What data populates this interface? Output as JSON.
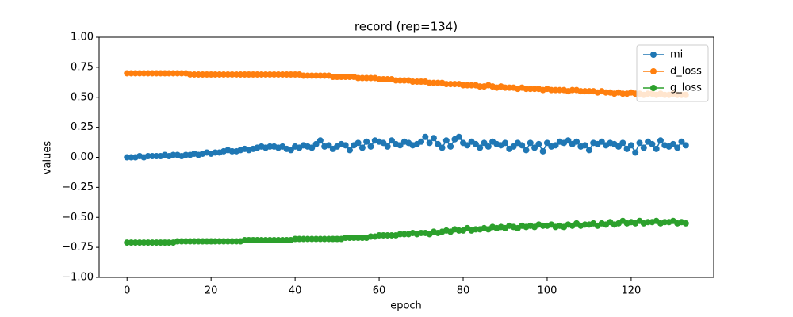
{
  "chart_data": {
    "type": "line",
    "title": "record (rep=134)",
    "xlabel": "epoch",
    "ylabel": "values",
    "x": [
      0,
      1,
      2,
      3,
      4,
      5,
      6,
      7,
      8,
      9,
      10,
      11,
      12,
      13,
      14,
      15,
      16,
      17,
      18,
      19,
      20,
      21,
      22,
      23,
      24,
      25,
      26,
      27,
      28,
      29,
      30,
      31,
      32,
      33,
      34,
      35,
      36,
      37,
      38,
      39,
      40,
      41,
      42,
      43,
      44,
      45,
      46,
      47,
      48,
      49,
      50,
      51,
      52,
      53,
      54,
      55,
      56,
      57,
      58,
      59,
      60,
      61,
      62,
      63,
      64,
      65,
      66,
      67,
      68,
      69,
      70,
      71,
      72,
      73,
      74,
      75,
      76,
      77,
      78,
      79,
      80,
      81,
      82,
      83,
      84,
      85,
      86,
      87,
      88,
      89,
      90,
      91,
      92,
      93,
      94,
      95,
      96,
      97,
      98,
      99,
      100,
      101,
      102,
      103,
      104,
      105,
      106,
      107,
      108,
      109,
      110,
      111,
      112,
      113,
      114,
      115,
      116,
      117,
      118,
      119,
      120,
      121,
      122,
      123,
      124,
      125,
      126,
      127,
      128,
      129,
      130,
      131,
      132,
      133
    ],
    "series": [
      {
        "name": "mi",
        "color": "#1f77b4",
        "values": [
          0.0,
          0.0,
          0.0,
          0.01,
          0.0,
          0.01,
          0.01,
          0.01,
          0.01,
          0.02,
          0.01,
          0.02,
          0.02,
          0.01,
          0.02,
          0.02,
          0.03,
          0.02,
          0.03,
          0.04,
          0.03,
          0.04,
          0.04,
          0.05,
          0.06,
          0.05,
          0.05,
          0.06,
          0.07,
          0.06,
          0.07,
          0.08,
          0.09,
          0.08,
          0.09,
          0.09,
          0.08,
          0.09,
          0.07,
          0.06,
          0.09,
          0.08,
          0.1,
          0.09,
          0.08,
          0.11,
          0.14,
          0.09,
          0.1,
          0.07,
          0.09,
          0.11,
          0.1,
          0.06,
          0.1,
          0.12,
          0.08,
          0.13,
          0.09,
          0.14,
          0.13,
          0.12,
          0.09,
          0.14,
          0.11,
          0.1,
          0.13,
          0.12,
          0.1,
          0.11,
          0.13,
          0.17,
          0.12,
          0.16,
          0.11,
          0.08,
          0.14,
          0.09,
          0.15,
          0.17,
          0.12,
          0.1,
          0.13,
          0.11,
          0.08,
          0.12,
          0.09,
          0.13,
          0.11,
          0.1,
          0.12,
          0.07,
          0.09,
          0.12,
          0.1,
          0.06,
          0.12,
          0.08,
          0.11,
          0.05,
          0.12,
          0.09,
          0.1,
          0.13,
          0.12,
          0.14,
          0.11,
          0.13,
          0.09,
          0.1,
          0.06,
          0.12,
          0.11,
          0.13,
          0.1,
          0.12,
          0.11,
          0.09,
          0.12,
          0.07,
          0.1,
          0.04,
          0.12,
          0.08,
          0.13,
          0.11,
          0.07,
          0.14,
          0.1,
          0.09,
          0.11,
          0.08,
          0.13,
          0.1
        ]
      },
      {
        "name": "d_loss",
        "color": "#ff7f0e",
        "values": [
          0.7,
          0.7,
          0.7,
          0.7,
          0.7,
          0.7,
          0.7,
          0.7,
          0.7,
          0.7,
          0.7,
          0.7,
          0.7,
          0.7,
          0.7,
          0.69,
          0.69,
          0.69,
          0.69,
          0.69,
          0.69,
          0.69,
          0.69,
          0.69,
          0.69,
          0.69,
          0.69,
          0.69,
          0.69,
          0.69,
          0.69,
          0.69,
          0.69,
          0.69,
          0.69,
          0.69,
          0.69,
          0.69,
          0.69,
          0.69,
          0.69,
          0.69,
          0.68,
          0.68,
          0.68,
          0.68,
          0.68,
          0.68,
          0.68,
          0.67,
          0.67,
          0.67,
          0.67,
          0.67,
          0.67,
          0.66,
          0.66,
          0.66,
          0.66,
          0.66,
          0.65,
          0.65,
          0.65,
          0.65,
          0.64,
          0.64,
          0.64,
          0.64,
          0.63,
          0.63,
          0.63,
          0.63,
          0.62,
          0.62,
          0.62,
          0.62,
          0.61,
          0.61,
          0.61,
          0.61,
          0.6,
          0.6,
          0.6,
          0.6,
          0.59,
          0.59,
          0.6,
          0.59,
          0.58,
          0.59,
          0.58,
          0.58,
          0.58,
          0.57,
          0.58,
          0.57,
          0.57,
          0.57,
          0.57,
          0.56,
          0.57,
          0.56,
          0.56,
          0.56,
          0.56,
          0.55,
          0.56,
          0.56,
          0.55,
          0.55,
          0.55,
          0.55,
          0.54,
          0.55,
          0.54,
          0.54,
          0.53,
          0.54,
          0.53,
          0.53,
          0.54,
          0.53,
          0.53,
          0.52,
          0.53,
          0.53,
          0.52,
          0.53,
          0.52,
          0.52,
          0.53,
          0.52,
          0.52,
          0.52
        ]
      },
      {
        "name": "g_loss",
        "color": "#2ca02c",
        "values": [
          -0.71,
          -0.71,
          -0.71,
          -0.71,
          -0.71,
          -0.71,
          -0.71,
          -0.71,
          -0.71,
          -0.71,
          -0.71,
          -0.71,
          -0.7,
          -0.7,
          -0.7,
          -0.7,
          -0.7,
          -0.7,
          -0.7,
          -0.7,
          -0.7,
          -0.7,
          -0.7,
          -0.7,
          -0.7,
          -0.7,
          -0.7,
          -0.7,
          -0.69,
          -0.69,
          -0.69,
          -0.69,
          -0.69,
          -0.69,
          -0.69,
          -0.69,
          -0.69,
          -0.69,
          -0.69,
          -0.69,
          -0.68,
          -0.68,
          -0.68,
          -0.68,
          -0.68,
          -0.68,
          -0.68,
          -0.68,
          -0.68,
          -0.68,
          -0.68,
          -0.68,
          -0.67,
          -0.67,
          -0.67,
          -0.67,
          -0.67,
          -0.67,
          -0.66,
          -0.66,
          -0.65,
          -0.65,
          -0.65,
          -0.65,
          -0.65,
          -0.64,
          -0.64,
          -0.64,
          -0.63,
          -0.64,
          -0.63,
          -0.63,
          -0.64,
          -0.62,
          -0.63,
          -0.62,
          -0.61,
          -0.62,
          -0.6,
          -0.61,
          -0.61,
          -0.59,
          -0.61,
          -0.6,
          -0.6,
          -0.59,
          -0.6,
          -0.58,
          -0.59,
          -0.58,
          -0.59,
          -0.57,
          -0.58,
          -0.59,
          -0.57,
          -0.58,
          -0.57,
          -0.58,
          -0.56,
          -0.57,
          -0.57,
          -0.56,
          -0.58,
          -0.57,
          -0.58,
          -0.56,
          -0.57,
          -0.55,
          -0.57,
          -0.56,
          -0.56,
          -0.55,
          -0.57,
          -0.55,
          -0.56,
          -0.54,
          -0.56,
          -0.55,
          -0.53,
          -0.55,
          -0.54,
          -0.55,
          -0.53,
          -0.55,
          -0.54,
          -0.54,
          -0.53,
          -0.55,
          -0.54,
          -0.54,
          -0.53,
          -0.55,
          -0.54,
          -0.55
        ]
      }
    ],
    "xlim": [
      -6.65,
      139.65
    ],
    "xticks": [
      0,
      20,
      40,
      60,
      80,
      100,
      120
    ],
    "ylim": [
      -1,
      1
    ],
    "yticks": [
      {
        "value": -1,
        "label": "−1.00"
      },
      {
        "value": -0.75,
        "label": "−0.75"
      },
      {
        "value": -0.5,
        "label": "−0.50"
      },
      {
        "value": -0.25,
        "label": "−0.25"
      },
      {
        "value": 0,
        "label": "0.00"
      },
      {
        "value": 0.25,
        "label": "0.25"
      },
      {
        "value": 0.5,
        "label": "0.50"
      },
      {
        "value": 0.75,
        "label": "0.75"
      },
      {
        "value": 1,
        "label": "1.00"
      }
    ],
    "grid": false,
    "legend": "upper right"
  }
}
